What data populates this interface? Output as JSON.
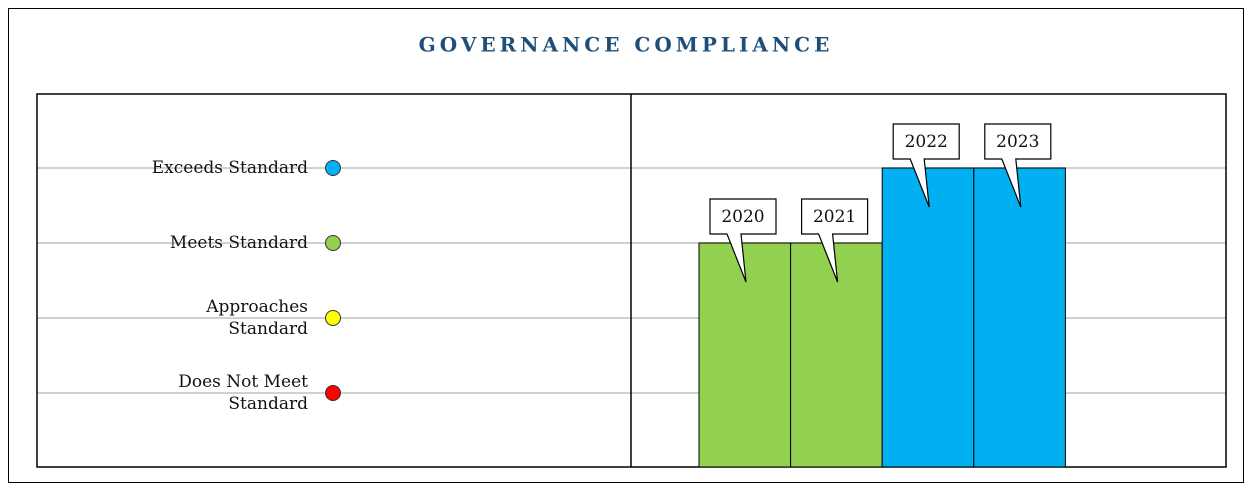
{
  "chart_data": {
    "type": "bar",
    "title": "GOVERNANCE COMPLIANCE",
    "categories": [
      "2020",
      "2021",
      "2022",
      "2023"
    ],
    "values": [
      3,
      3,
      4,
      4
    ],
    "colors": [
      "#92d050",
      "#92d050",
      "#00b0f0",
      "#00b0f0"
    ],
    "ylim": [
      0,
      5
    ],
    "yticks": [
      {
        "value": 1,
        "label": "Does Not Meet Standard"
      },
      {
        "value": 2,
        "label": "Approaches Standard"
      },
      {
        "value": 3,
        "label": "Meets Standard"
      },
      {
        "value": 4,
        "label": "Exceeds Standard"
      }
    ],
    "tick_colors": [
      "#ff0000",
      "#ffff00",
      "#92d050",
      "#00b0f0"
    ],
    "grid": true
  }
}
